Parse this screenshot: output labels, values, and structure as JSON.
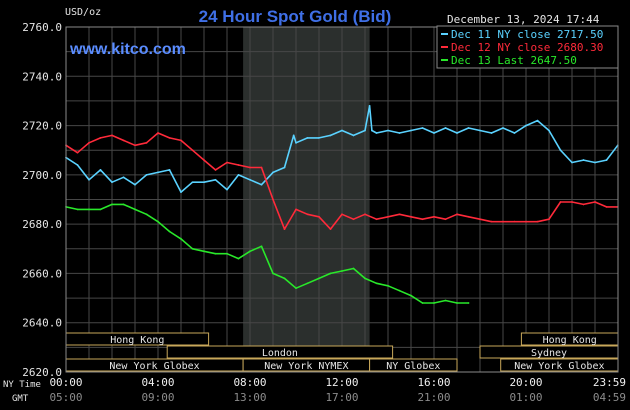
{
  "chart_data": {
    "type": "line",
    "title": "24 Hour Spot Gold (Bid)",
    "unit_label": "USD/oz",
    "site": "www.kitco.com",
    "timestamp": "December 13, 2024 17:44",
    "ylim": [
      2620,
      2760
    ],
    "y_ticks": [
      "2760.0",
      "2740.0",
      "2720.0",
      "2700.0",
      "2680.0",
      "2660.0",
      "2640.0",
      "2620.0"
    ],
    "y_tick_values": [
      2760,
      2740,
      2720,
      2700,
      2680,
      2660,
      2640,
      2620
    ],
    "xlim": [
      0,
      24
    ],
    "x_tick_hours": [
      0,
      4,
      8,
      12,
      16,
      20,
      24
    ],
    "x_ticks_ny": [
      "00:00",
      "04:00",
      "08:00",
      "12:00",
      "16:00",
      "20:00",
      "23:59"
    ],
    "x_ticks_gmt": [
      "05:00",
      "09:00",
      "13:00",
      "17:00",
      "21:00",
      "01:00",
      "04:59"
    ],
    "ny_time_label": "NY Time",
    "gmt_label": "GMT",
    "shaded_region": [
      7.7,
      13.2
    ],
    "grid": true,
    "series": [
      {
        "name": "Dec 11 NY close 2717.50",
        "color": "#5ad2ff",
        "x": [
          0,
          0.5,
          1,
          1.5,
          2,
          2.5,
          3,
          3.5,
          4,
          4.5,
          5,
          5.5,
          6,
          6.5,
          7,
          7.5,
          8,
          8.5,
          9,
          9.5,
          9.9,
          10,
          10.5,
          11,
          11.5,
          12,
          12.5,
          13,
          13.2,
          13.3,
          13.5,
          14,
          14.5,
          15,
          15.5,
          16,
          16.5,
          17,
          17.5,
          18,
          18.5,
          19,
          19.5,
          20,
          20.5,
          21,
          21.5,
          22,
          22.5,
          23,
          23.5,
          23.99
        ],
        "y": [
          2707,
          2704,
          2698,
          2702,
          2697,
          2699,
          2696,
          2700,
          2701,
          2702,
          2693,
          2697,
          2697,
          2698,
          2694,
          2700,
          2698,
          2696,
          2701,
          2703,
          2716,
          2713,
          2715,
          2715,
          2716,
          2718,
          2716,
          2718,
          2728,
          2718,
          2717,
          2718,
          2717,
          2718,
          2719,
          2717,
          2719,
          2717,
          2719,
          2718,
          2717,
          2719,
          2717,
          2720,
          2722,
          2718,
          2710,
          2705,
          2706,
          2705,
          2706,
          2712
        ]
      },
      {
        "name": "Dec 12 NY close 2680.30",
        "color": "#ff2a3a",
        "x": [
          0,
          0.5,
          1,
          1.5,
          2,
          2.5,
          3,
          3.5,
          4,
          4.5,
          5,
          5.5,
          6,
          6.5,
          7,
          7.5,
          8,
          8.5,
          9,
          9.5,
          10,
          10.5,
          11,
          11.5,
          12,
          12.5,
          13,
          13.5,
          14,
          14.5,
          15,
          15.5,
          16,
          16.5,
          17,
          17.5,
          18,
          18.5,
          19,
          19.5,
          20,
          20.5,
          21,
          21.5,
          22,
          22.5,
          23,
          23.5,
          23.99
        ],
        "y": [
          2712,
          2709,
          2713,
          2715,
          2716,
          2714,
          2712,
          2713,
          2717,
          2715,
          2714,
          2710,
          2706,
          2702,
          2705,
          2704,
          2703,
          2703,
          2690,
          2678,
          2686,
          2684,
          2683,
          2678,
          2684,
          2682,
          2684,
          2682,
          2683,
          2684,
          2683,
          2682,
          2683,
          2682,
          2684,
          2683,
          2682,
          2681,
          2681,
          2681,
          2681,
          2681,
          2682,
          2689,
          2689,
          2688,
          2689,
          2687,
          2687
        ]
      },
      {
        "name": "Dec 13 Last 2647.50",
        "color": "#29e82a",
        "x": [
          0,
          0.5,
          1,
          1.5,
          2,
          2.5,
          3,
          3.5,
          4,
          4.5,
          5,
          5.5,
          6,
          6.5,
          7,
          7.5,
          8,
          8.5,
          9,
          9.5,
          10,
          10.5,
          11,
          11.5,
          12,
          12.5,
          13,
          13.5,
          14,
          14.5,
          15,
          15.5,
          16,
          16.5,
          17,
          17.5
        ],
        "y": [
          2687,
          2686,
          2686,
          2686,
          2688,
          2688,
          2686,
          2684,
          2681,
          2677,
          2674,
          2670,
          2669,
          2668,
          2668,
          2666,
          2669,
          2671,
          2660,
          2658,
          2654,
          2656,
          2658,
          2660,
          2661,
          2662,
          2658,
          2656,
          2655,
          2653,
          2651,
          2648,
          2648,
          2649,
          2648,
          2648
        ]
      }
    ]
  },
  "sessions": [
    {
      "label": "Hong Kong",
      "start": 0,
      "end": 6.2,
      "row": 1
    },
    {
      "label": "London",
      "start": 4.4,
      "end": 14.2,
      "row": 2
    },
    {
      "label": "New York Globex",
      "start": 0,
      "end": 7.7,
      "row": 3
    },
    {
      "label": "New York NYMEX",
      "start": 7.7,
      "end": 13.2,
      "row": 3
    },
    {
      "label": "NY Globex",
      "start": 13.2,
      "end": 17.0,
      "row": 3
    },
    {
      "label": "New York Globex",
      "start": 18.9,
      "end": 24,
      "row": 3
    },
    {
      "label": "Sydney",
      "start": 18.0,
      "end": 24,
      "row": 2
    },
    {
      "label": "Hong Kong",
      "start": 19.8,
      "end": 24,
      "row": 1
    }
  ]
}
